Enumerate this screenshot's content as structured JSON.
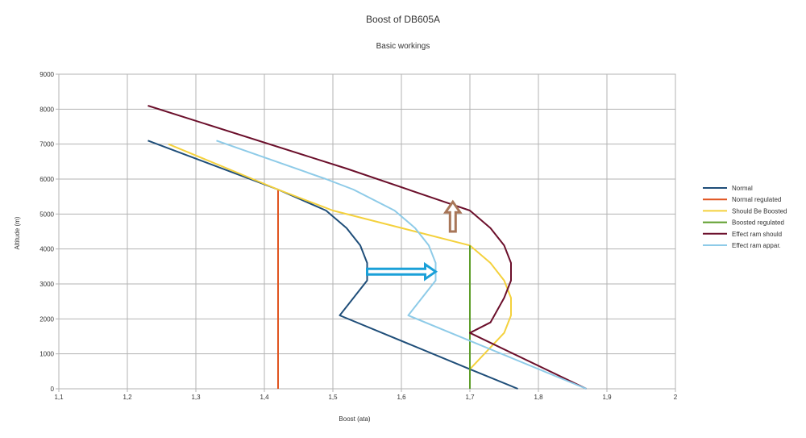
{
  "chart_data": {
    "type": "line",
    "title": "Boost of DB605A",
    "subtitle": "Basic workings",
    "xlabel": "Boost (ata)",
    "ylabel": "Altitude (m)",
    "xlim": [
      1.1,
      2.0
    ],
    "ylim": [
      0,
      9000
    ],
    "x_ticks": [
      "1,1",
      "1,2",
      "1,3",
      "1,4",
      "1,5",
      "1,6",
      "1,7",
      "1,8",
      "1,9",
      "2"
    ],
    "y_ticks": [
      "0",
      "1000",
      "2000",
      "3000",
      "4000",
      "5000",
      "6000",
      "7000",
      "8000",
      "9000"
    ],
    "grid": true,
    "legend_position": "right",
    "series": [
      {
        "name": "Normal",
        "color": "#1f4e79",
        "points": [
          [
            1.77,
            0
          ],
          [
            1.7,
            560
          ],
          [
            1.51,
            2100
          ],
          [
            1.55,
            3100
          ],
          [
            1.55,
            3600
          ],
          [
            1.54,
            4100
          ],
          [
            1.52,
            4600
          ],
          [
            1.49,
            5100
          ],
          [
            1.42,
            5700
          ],
          [
            1.23,
            7100
          ]
        ]
      },
      {
        "name": "Normal regulated",
        "color": "#e0541f",
        "points": [
          [
            1.42,
            0
          ],
          [
            1.42,
            5700
          ]
        ]
      },
      {
        "name": "Should Be Boosted",
        "color": "#f4d13d",
        "points": [
          [
            1.7,
            560
          ],
          [
            1.75,
            1600
          ],
          [
            1.76,
            2100
          ],
          [
            1.76,
            2600
          ],
          [
            1.75,
            3100
          ],
          [
            1.73,
            3600
          ],
          [
            1.7,
            4100
          ],
          [
            1.5,
            5100
          ],
          [
            1.42,
            5700
          ],
          [
            1.26,
            7000
          ]
        ]
      },
      {
        "name": "Boosted regulated",
        "color": "#5e9e2b",
        "points": [
          [
            1.7,
            0
          ],
          [
            1.7,
            4100
          ]
        ]
      },
      {
        "name": "Effect ram should",
        "color": "#6b0f2b",
        "points": [
          [
            1.87,
            0
          ],
          [
            1.7,
            1600
          ],
          [
            1.73,
            1900
          ],
          [
            1.75,
            2600
          ],
          [
            1.76,
            3100
          ],
          [
            1.76,
            3600
          ],
          [
            1.75,
            4100
          ],
          [
            1.73,
            4600
          ],
          [
            1.7,
            5100
          ],
          [
            1.52,
            6300
          ],
          [
            1.23,
            8100
          ]
        ]
      },
      {
        "name": "Effect ram appar.",
        "color": "#8ecbe8",
        "points": [
          [
            1.87,
            0
          ],
          [
            1.61,
            2100
          ],
          [
            1.65,
            3100
          ],
          [
            1.65,
            3600
          ],
          [
            1.64,
            4100
          ],
          [
            1.62,
            4600
          ],
          [
            1.59,
            5100
          ],
          [
            1.53,
            5700
          ],
          [
            1.49,
            6000
          ],
          [
            1.33,
            7100
          ]
        ]
      }
    ],
    "annotations": [
      {
        "type": "arrow",
        "direction": "right",
        "color": "#1aa0d8",
        "from": [
          1.55,
          3350
        ],
        "to": [
          1.65,
          3350
        ]
      },
      {
        "type": "arrow",
        "direction": "up",
        "color": "#a87658",
        "from": [
          1.675,
          4500
        ],
        "to": [
          1.675,
          5350
        ]
      }
    ]
  }
}
